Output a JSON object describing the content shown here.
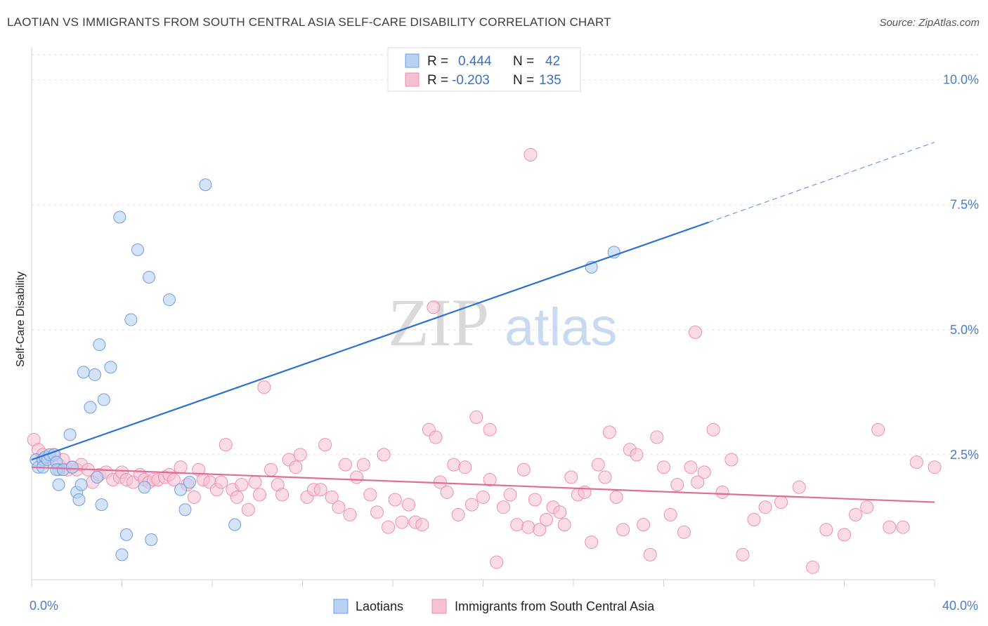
{
  "title": "LAOTIAN VS IMMIGRANTS FROM SOUTH CENTRAL ASIA SELF-CARE DISABILITY CORRELATION CHART",
  "source": "Source: ZipAtlas.com",
  "watermark": {
    "zip": "ZIP",
    "atlas": "atlas"
  },
  "colors": {
    "blue_fill": "#b8d0f2",
    "blue_stroke": "#6f9ee0",
    "blue_line": "#2f6fcf",
    "pink_fill": "#f7bfd2",
    "pink_stroke": "#ee8fb0",
    "pink_line": "#e36b97"
  },
  "legend": {
    "rows": [
      {
        "r_label": "R =",
        "r_value": "0.444",
        "n_label": "N =",
        "n_value": "42"
      },
      {
        "r_label": "R =",
        "r_value": "-0.203",
        "n_label": "N =",
        "n_value": "135"
      }
    ]
  },
  "bottom_legend": [
    "Laotians",
    "Immigrants from South Central Asia"
  ],
  "chart_data": {
    "type": "scatter",
    "title": "LAOTIAN VS IMMIGRANTS FROM SOUTH CENTRAL ASIA SELF-CARE DISABILITY CORRELATION CHART",
    "xlabel": "",
    "ylabel": "Self-Care Disability",
    "xlim": [
      0,
      40
    ],
    "ylim": [
      0,
      10.5
    ],
    "x_tick_labels": [
      "0.0%",
      "40.0%"
    ],
    "y_ticks": [
      2.5,
      5.0,
      7.5,
      10.0
    ],
    "y_tick_labels": [
      "2.5%",
      "5.0%",
      "7.5%",
      "10.0%"
    ],
    "grid": true,
    "legend_position": "top-center",
    "series": [
      {
        "name": "Laotians",
        "r": 0.444,
        "n": 42,
        "trend": {
          "x0": 0,
          "y0": 2.4,
          "x1": 30,
          "y1": 7.15,
          "dash_to_x": 40,
          "dash_to_y": 8.75
        },
        "points": [
          [
            0.2,
            2.4
          ],
          [
            0.3,
            2.25
          ],
          [
            0.5,
            2.4
          ],
          [
            0.5,
            2.25
          ],
          [
            0.6,
            2.45
          ],
          [
            0.7,
            2.4
          ],
          [
            0.8,
            2.5
          ],
          [
            1.0,
            2.5
          ],
          [
            1.1,
            2.35
          ],
          [
            1.2,
            2.2
          ],
          [
            1.1,
            2.2
          ],
          [
            1.4,
            2.2
          ],
          [
            1.8,
            2.25
          ],
          [
            2.0,
            1.75
          ],
          [
            2.1,
            1.6
          ],
          [
            1.7,
            2.9
          ],
          [
            1.2,
            1.9
          ],
          [
            2.2,
            1.9
          ],
          [
            2.3,
            4.15
          ],
          [
            2.8,
            4.1
          ],
          [
            2.6,
            3.45
          ],
          [
            2.9,
            2.05
          ],
          [
            3.1,
            1.5
          ],
          [
            3.0,
            4.7
          ],
          [
            3.2,
            3.6
          ],
          [
            3.5,
            4.25
          ],
          [
            3.9,
            7.25
          ],
          [
            4.2,
            0.9
          ],
          [
            4.4,
            5.2
          ],
          [
            4.7,
            6.6
          ],
          [
            4.0,
            0.5
          ],
          [
            5.0,
            1.85
          ],
          [
            5.2,
            6.05
          ],
          [
            5.3,
            0.8
          ],
          [
            6.1,
            5.6
          ],
          [
            6.6,
            1.8
          ],
          [
            6.8,
            1.4
          ],
          [
            7.0,
            1.95
          ],
          [
            7.7,
            7.9
          ],
          [
            9.0,
            1.1
          ],
          [
            24.8,
            6.25
          ],
          [
            25.8,
            6.55
          ]
        ]
      },
      {
        "name": "Immigrants from South Central Asia",
        "r": -0.203,
        "n": 135,
        "trend": {
          "x0": 0,
          "y0": 2.25,
          "x1": 40,
          "y1": 1.55
        },
        "points": [
          [
            0.1,
            2.8
          ],
          [
            0.3,
            2.6
          ],
          [
            0.5,
            2.5
          ],
          [
            0.8,
            2.45
          ],
          [
            1.0,
            2.5
          ],
          [
            1.2,
            2.3
          ],
          [
            1.4,
            2.4
          ],
          [
            1.6,
            2.2
          ],
          [
            1.8,
            2.25
          ],
          [
            2.0,
            2.2
          ],
          [
            2.2,
            2.3
          ],
          [
            2.5,
            2.2
          ],
          [
            2.7,
            1.95
          ],
          [
            3.0,
            2.1
          ],
          [
            3.3,
            2.15
          ],
          [
            3.6,
            2.0
          ],
          [
            3.9,
            2.05
          ],
          [
            4.0,
            2.15
          ],
          [
            4.2,
            2.0
          ],
          [
            4.5,
            1.95
          ],
          [
            4.8,
            2.1
          ],
          [
            5.0,
            2.0
          ],
          [
            5.2,
            1.95
          ],
          [
            5.4,
            2.0
          ],
          [
            5.6,
            2.0
          ],
          [
            5.9,
            2.05
          ],
          [
            6.1,
            2.1
          ],
          [
            6.3,
            2.0
          ],
          [
            6.6,
            2.25
          ],
          [
            6.9,
            1.9
          ],
          [
            7.2,
            1.65
          ],
          [
            7.4,
            2.2
          ],
          [
            7.6,
            2.0
          ],
          [
            7.9,
            1.95
          ],
          [
            8.2,
            1.8
          ],
          [
            8.4,
            1.95
          ],
          [
            8.6,
            2.7
          ],
          [
            8.9,
            1.8
          ],
          [
            9.1,
            1.65
          ],
          [
            9.3,
            1.9
          ],
          [
            9.6,
            1.4
          ],
          [
            9.9,
            1.95
          ],
          [
            10.1,
            1.7
          ],
          [
            10.3,
            3.85
          ],
          [
            10.6,
            2.2
          ],
          [
            10.9,
            1.9
          ],
          [
            11.1,
            1.7
          ],
          [
            11.4,
            2.4
          ],
          [
            11.7,
            2.25
          ],
          [
            11.9,
            2.5
          ],
          [
            12.2,
            1.65
          ],
          [
            12.5,
            1.8
          ],
          [
            12.8,
            1.8
          ],
          [
            13.0,
            2.7
          ],
          [
            13.3,
            1.65
          ],
          [
            13.6,
            1.45
          ],
          [
            13.9,
            2.3
          ],
          [
            14.1,
            1.3
          ],
          [
            14.4,
            2.05
          ],
          [
            14.7,
            2.3
          ],
          [
            15.0,
            1.7
          ],
          [
            15.3,
            1.35
          ],
          [
            15.6,
            2.5
          ],
          [
            15.8,
            1.05
          ],
          [
            16.1,
            1.6
          ],
          [
            16.4,
            1.15
          ],
          [
            16.7,
            1.5
          ],
          [
            17.0,
            1.15
          ],
          [
            17.3,
            1.1
          ],
          [
            17.6,
            3.0
          ],
          [
            17.9,
            2.85
          ],
          [
            18.1,
            1.95
          ],
          [
            18.4,
            1.75
          ],
          [
            18.7,
            2.3
          ],
          [
            18.9,
            1.3
          ],
          [
            19.2,
            2.25
          ],
          [
            19.5,
            1.5
          ],
          [
            19.7,
            3.25
          ],
          [
            20.0,
            1.65
          ],
          [
            20.3,
            2.0
          ],
          [
            20.6,
            0.35
          ],
          [
            20.9,
            1.45
          ],
          [
            21.2,
            1.7
          ],
          [
            21.5,
            1.1
          ],
          [
            21.8,
            2.2
          ],
          [
            22.0,
            1.05
          ],
          [
            22.3,
            1.6
          ],
          [
            22.5,
            1.0
          ],
          [
            22.8,
            1.2
          ],
          [
            23.1,
            1.45
          ],
          [
            23.4,
            1.35
          ],
          [
            23.6,
            1.1
          ],
          [
            23.9,
            2.05
          ],
          [
            24.2,
            1.7
          ],
          [
            24.5,
            1.75
          ],
          [
            24.8,
            0.75
          ],
          [
            25.1,
            2.3
          ],
          [
            25.4,
            2.05
          ],
          [
            25.6,
            2.95
          ],
          [
            25.9,
            1.65
          ],
          [
            26.2,
            1.0
          ],
          [
            26.5,
            2.6
          ],
          [
            26.8,
            2.5
          ],
          [
            27.1,
            1.1
          ],
          [
            27.4,
            0.5
          ],
          [
            27.7,
            2.85
          ],
          [
            28.0,
            2.25
          ],
          [
            28.3,
            1.3
          ],
          [
            28.6,
            1.9
          ],
          [
            28.9,
            0.95
          ],
          [
            29.2,
            2.25
          ],
          [
            29.5,
            1.95
          ],
          [
            29.8,
            2.15
          ],
          [
            30.2,
            3.0
          ],
          [
            30.6,
            1.75
          ],
          [
            31.0,
            2.4
          ],
          [
            31.5,
            0.5
          ],
          [
            32.0,
            1.2
          ],
          [
            32.5,
            1.45
          ],
          [
            33.2,
            1.55
          ],
          [
            34.0,
            1.85
          ],
          [
            34.6,
            0.25
          ],
          [
            35.2,
            1.0
          ],
          [
            36.0,
            0.9
          ],
          [
            36.5,
            1.3
          ],
          [
            37.0,
            1.45
          ],
          [
            37.5,
            3.0
          ],
          [
            38.0,
            1.05
          ],
          [
            38.6,
            1.05
          ],
          [
            39.2,
            2.35
          ],
          [
            22.1,
            8.5
          ],
          [
            17.8,
            5.45
          ],
          [
            20.3,
            3.0
          ],
          [
            29.4,
            4.95
          ],
          [
            40.0,
            2.25
          ]
        ]
      }
    ]
  }
}
